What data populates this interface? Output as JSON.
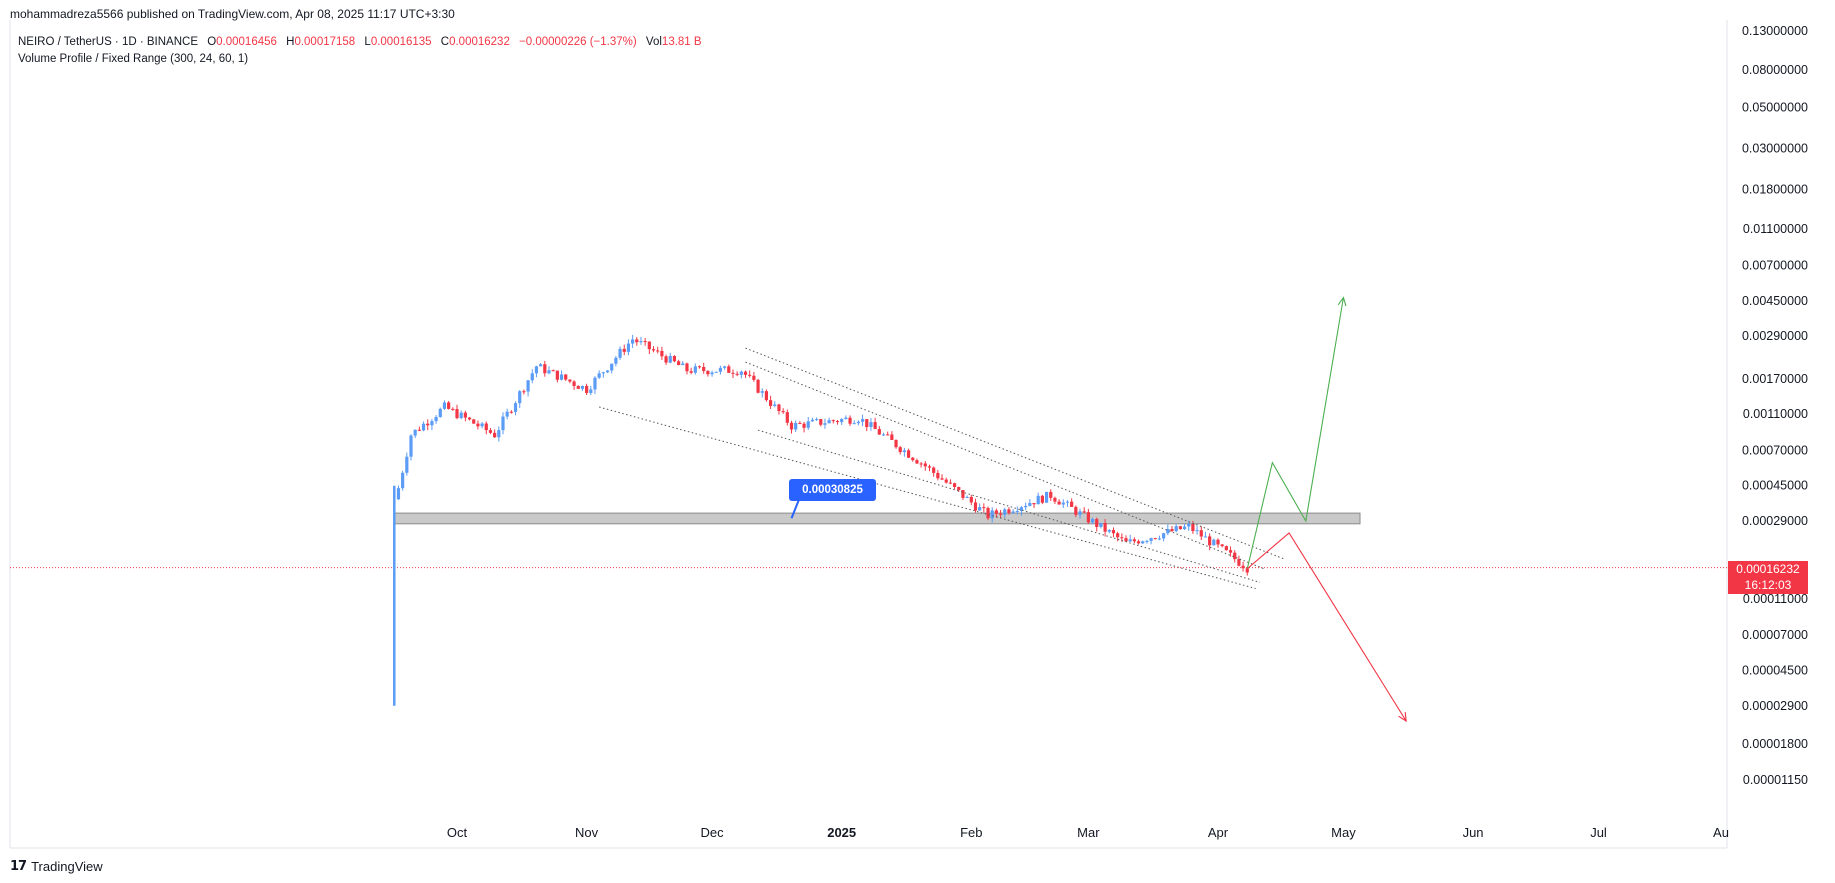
{
  "publisher_line": "mohammadreza5566 published on TradingView.com, Apr 08, 2025 11:17 UTC+3:30",
  "legend": {
    "symbol": "NEIRO / TetherUS · 1D · BINANCE",
    "o_label": "O",
    "o_value": "0.00016456",
    "h_label": "H",
    "h_value": "0.00017158",
    "l_label": "L",
    "l_value": "0.00016135",
    "c_label": "C",
    "c_value": "0.00016232",
    "change": "−0.00000226 (−1.37%)",
    "vol_label": "Vol",
    "vol_value": "13.81 B",
    "indicator": "Volume Profile / Fixed Range (300, 24, 60, 1)"
  },
  "current_price": {
    "price": "0.00016232",
    "countdown": "16:12:03"
  },
  "level_label": "0.00030825",
  "brand": "TradingView",
  "colors": {
    "up": "#5b9cf6",
    "down": "#f23645",
    "bull_path": "#4caf50",
    "bear_path": "#f23645",
    "zone": "#c9c9c9",
    "label_bg": "#2962ff"
  },
  "chart_data": {
    "type": "candlestick",
    "scale": "log",
    "y_ticks": [
      "0.13000000",
      "0.08000000",
      "0.05000000",
      "0.03000000",
      "0.01800000",
      "0.01100000",
      "0.00700000",
      "0.00450000",
      "0.00290000",
      "0.00170000",
      "0.00110000",
      "0.00070000",
      "0.00045000",
      "0.00029000",
      "0.00011000",
      "0.00007000",
      "0.00004500",
      "0.00002900",
      "0.00001800",
      "0.00001150"
    ],
    "x_ticks": [
      "Oct",
      "Nov",
      "Dec",
      "2025",
      "Feb",
      "Mar",
      "Apr",
      "May",
      "Jun",
      "Jul",
      "Au"
    ],
    "ylim": [
      9.5e-06,
      0.14
    ],
    "series_close_approx": [
      {
        "date": "2024-09-16",
        "open": 0.0003,
        "high": 0.00045,
        "low": 3e-05,
        "close": 0.00035
      },
      {
        "date": "2024-09-20",
        "close": 0.00085
      },
      {
        "date": "2024-09-28",
        "close": 0.0012
      },
      {
        "date": "2024-10-10",
        "close": 0.00085
      },
      {
        "date": "2024-10-20",
        "close": 0.002
      },
      {
        "date": "2024-11-01",
        "close": 0.0015
      },
      {
        "date": "2024-11-12",
        "close": 0.0028
      },
      {
        "date": "2024-11-25",
        "close": 0.0019
      },
      {
        "date": "2024-12-08",
        "close": 0.0019
      },
      {
        "date": "2024-12-20",
        "close": 0.00095
      },
      {
        "date": "2025-01-05",
        "close": 0.00105
      },
      {
        "date": "2025-01-20",
        "close": 0.0006
      },
      {
        "date": "2025-02-05",
        "close": 0.00031
      },
      {
        "date": "2025-02-20",
        "close": 0.0004
      },
      {
        "date": "2025-03-10",
        "close": 0.00022
      },
      {
        "date": "2025-03-25",
        "close": 0.00027
      },
      {
        "date": "2025-04-08",
        "open": 0.00016456,
        "high": 0.00017158,
        "low": 0.00016135,
        "close": 0.00016232
      }
    ],
    "horizontal_zone": {
      "low": 0.00028,
      "high": 0.00032
    },
    "projection_bullish": [
      [
        "2025-04-08",
        0.00016
      ],
      [
        "2025-04-14",
        0.0006
      ],
      [
        "2025-04-22",
        0.00029
      ],
      [
        "2025-05-01",
        0.0047
      ]
    ],
    "projection_bearish": [
      [
        "2025-04-08",
        0.00016
      ],
      [
        "2025-04-18",
        0.00025
      ],
      [
        "2025-05-16",
        2.4e-05
      ]
    ]
  }
}
